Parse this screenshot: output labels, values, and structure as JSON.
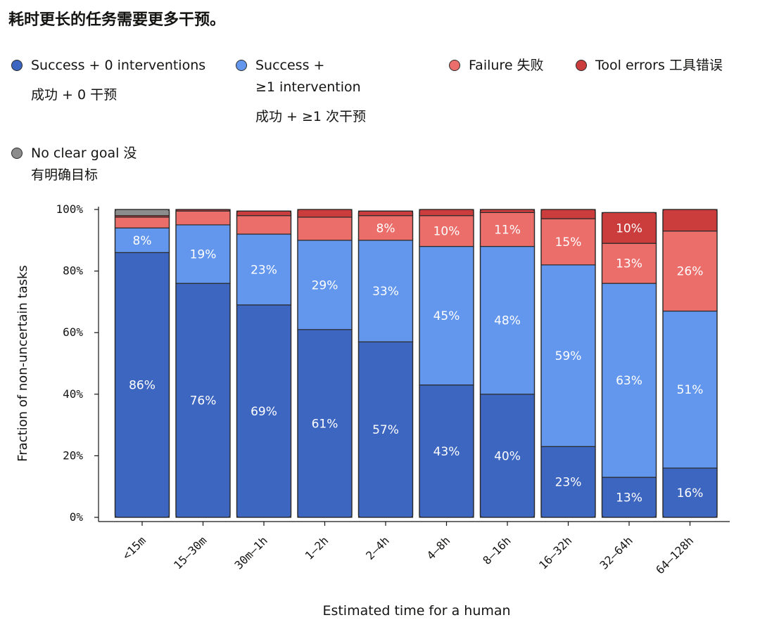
{
  "title": "耗时更长的任务需要更多干预。",
  "legend": [
    {
      "name": "success-0-interventions",
      "lines": [
        "Success + 0 interventions",
        "成功 + 0 干预"
      ],
      "color": "#3D66C1"
    },
    {
      "name": "success-1-intervention",
      "lines": [
        "Success +",
        "≥1 intervention",
        "成功 + ≥1 次干预"
      ],
      "color": "#6397EE"
    },
    {
      "name": "failure",
      "lines": [
        "Failure  失败"
      ],
      "color": "#EC6E6A"
    },
    {
      "name": "tool-errors",
      "lines": [
        "Tool errors  工具错误"
      ],
      "color": "#CB3C3C"
    },
    {
      "name": "no-clear-goal",
      "lines": [
        "No clear goal  没",
        "有明确目标"
      ],
      "color": "#8C8C8C"
    }
  ],
  "chart_data": {
    "type": "bar",
    "stacked": true,
    "xlabel": "Estimated time for a human",
    "ylabel": "Fraction of non-uncertain tasks",
    "ylim": [
      0,
      100
    ],
    "y_ticks": [
      "0%",
      "20%",
      "40%",
      "60%",
      "80%",
      "100%"
    ],
    "y_tick_values": [
      0,
      20,
      40,
      60,
      80,
      100
    ],
    "categories": [
      "<15m",
      "15–30m",
      "30m–1h",
      "1–2h",
      "2–4h",
      "4–8h",
      "8–16h",
      "16–32h",
      "32–64h",
      "64–128h"
    ],
    "series": [
      {
        "name": "Success + 0 interventions",
        "color": "#3D66C1",
        "values": [
          86,
          76,
          69,
          61,
          57,
          43,
          40,
          23,
          13,
          16
        ],
        "labels": [
          "86%",
          "76%",
          "69%",
          "61%",
          "57%",
          "43%",
          "40%",
          "23%",
          "13%",
          "16%"
        ]
      },
      {
        "name": "Success + ≥1 intervention",
        "color": "#6397EE",
        "values": [
          8,
          19,
          23,
          29,
          33,
          45,
          48,
          59,
          63,
          51
        ],
        "labels": [
          "8%",
          "19%",
          "23%",
          "29%",
          "33%",
          "45%",
          "48%",
          "59%",
          "63%",
          "51%"
        ]
      },
      {
        "name": "Failure",
        "color": "#EC6E6A",
        "values": [
          3.5,
          4.5,
          6,
          7.5,
          8,
          10,
          11,
          15,
          13,
          26
        ],
        "labels": [
          "",
          "",
          "",
          "",
          "8%",
          "10%",
          "11%",
          "15%",
          "13%",
          "26%"
        ]
      },
      {
        "name": "Tool errors",
        "color": "#CB3C3C",
        "values": [
          0.5,
          0.5,
          1.5,
          2.5,
          1.5,
          2,
          1,
          3,
          10,
          7
        ],
        "labels": [
          "",
          "",
          "",
          "",
          "",
          "",
          "",
          "",
          "10%",
          ""
        ]
      },
      {
        "name": "No clear goal",
        "color": "#8C8C8C",
        "values": [
          2,
          0,
          0,
          0,
          0,
          0,
          0,
          0,
          0,
          0
        ],
        "labels": [
          "",
          "",
          "",
          "",
          "",
          "",
          "",
          "",
          "",
          ""
        ]
      }
    ]
  }
}
